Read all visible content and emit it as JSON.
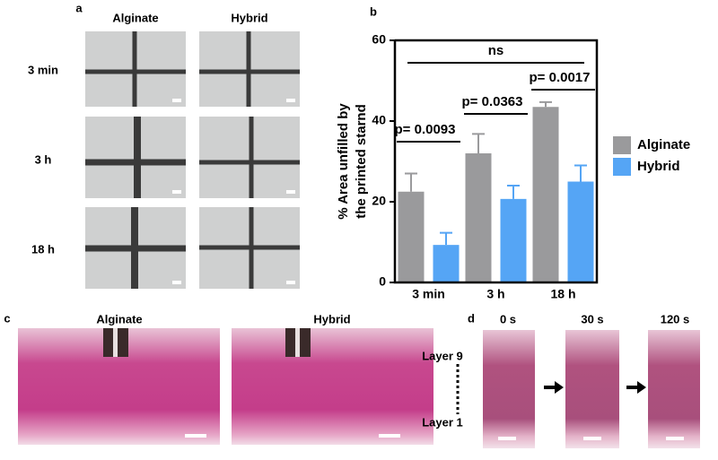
{
  "panels": {
    "a": {
      "label": "a",
      "columns": [
        "Alginate",
        "Hybrid"
      ],
      "rows": [
        "3 min",
        "3 h",
        "18 h"
      ]
    },
    "c": {
      "label": "c",
      "columns": [
        "Alginate",
        "Hybrid"
      ]
    },
    "d": {
      "label": "d",
      "columns": [
        "0 s",
        "30 s",
        "120 s"
      ],
      "layers": [
        "Layer 9",
        "Layer 1"
      ]
    }
  },
  "chart_data": {
    "type": "bar",
    "label": "b",
    "ylabel": [
      "% Area unfilled by",
      "the printed starnd"
    ],
    "categories": [
      "3 min",
      "3 h",
      "18 h"
    ],
    "series": [
      {
        "name": "Alginate",
        "color": "#9a9a9c",
        "values": [
          22.5,
          32,
          43.5
        ],
        "errors": [
          4.5,
          4.8,
          1.2
        ]
      },
      {
        "name": "Hybrid",
        "color": "#55a5f5",
        "values": [
          9.3,
          20.7,
          25
        ],
        "errors": [
          3,
          3.3,
          4
        ]
      }
    ],
    "annotations": [
      "p= 0.0093",
      "p= 0.0363",
      "p= 0.0017",
      "ns"
    ],
    "ylim": [
      0,
      60
    ],
    "yticks": [
      0,
      20,
      40,
      60
    ],
    "legend": "right"
  }
}
